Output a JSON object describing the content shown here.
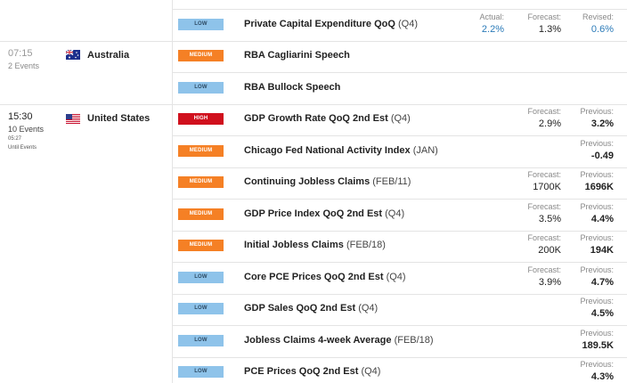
{
  "groups": [
    {
      "events": [
        {
          "impact": "LOW",
          "impact_color": "#8ec3ea",
          "impact_text_color": "#2d4a63",
          "name": "Private Capital Expenditure QoQ",
          "period": "(Q4)",
          "actual": {
            "label": "Actual:",
            "value": "2.2%"
          },
          "forecast": {
            "label": "Forecast:",
            "value": "1.3%"
          },
          "revised": {
            "label": "Revised:",
            "value": "0.6%"
          }
        }
      ]
    },
    {
      "time": "07:15",
      "count": "2 Events",
      "country": "Australia",
      "events": [
        {
          "impact": "MEDIUM",
          "impact_color": "#f58025",
          "impact_text_color": "#ffffff",
          "name": "RBA Cagliarini Speech"
        },
        {
          "impact": "LOW",
          "impact_color": "#8ec3ea",
          "impact_text_color": "#2d4a63",
          "name": "RBA Bullock Speech"
        }
      ]
    },
    {
      "time": "15:30",
      "count": "10 Events",
      "countdown": "05:27",
      "countdown_label": "Until Events",
      "country": "United States",
      "events": [
        {
          "impact": "HIGH",
          "impact_color": "#d0101d",
          "impact_text_color": "#ffffff",
          "name": "GDP Growth Rate QoQ 2nd Est",
          "period": "(Q4)",
          "forecast": {
            "label": "Forecast:",
            "value": "2.9%"
          },
          "previous": {
            "label": "Previous:",
            "value": "3.2%"
          }
        },
        {
          "impact": "MEDIUM",
          "impact_color": "#f58025",
          "impact_text_color": "#ffffff",
          "name": "Chicago Fed National Activity Index",
          "period": "(JAN)",
          "previous": {
            "label": "Previous:",
            "value": "-0.49"
          }
        },
        {
          "impact": "MEDIUM",
          "impact_color": "#f58025",
          "impact_text_color": "#ffffff",
          "name": "Continuing Jobless Claims",
          "period": "(FEB/11)",
          "forecast": {
            "label": "Forecast:",
            "value": "1700K"
          },
          "previous": {
            "label": "Previous:",
            "value": "1696K"
          }
        },
        {
          "impact": "MEDIUM",
          "impact_color": "#f58025",
          "impact_text_color": "#ffffff",
          "name": "GDP Price Index QoQ 2nd Est",
          "period": "(Q4)",
          "forecast": {
            "label": "Forecast:",
            "value": "3.5%"
          },
          "previous": {
            "label": "Previous:",
            "value": "4.4%"
          }
        },
        {
          "impact": "MEDIUM",
          "impact_color": "#f58025",
          "impact_text_color": "#ffffff",
          "name": "Initial Jobless Claims",
          "period": "(FEB/18)",
          "forecast": {
            "label": "Forecast:",
            "value": "200K"
          },
          "previous": {
            "label": "Previous:",
            "value": "194K"
          }
        },
        {
          "impact": "LOW",
          "impact_color": "#8ec3ea",
          "impact_text_color": "#2d4a63",
          "name": "Core PCE Prices QoQ 2nd Est",
          "period": "(Q4)",
          "forecast": {
            "label": "Forecast:",
            "value": "3.9%"
          },
          "previous": {
            "label": "Previous:",
            "value": "4.7%"
          }
        },
        {
          "impact": "LOW",
          "impact_color": "#8ec3ea",
          "impact_text_color": "#2d4a63",
          "name": "GDP Sales QoQ 2nd Est",
          "period": "(Q4)",
          "previous": {
            "label": "Previous:",
            "value": "4.5%"
          }
        },
        {
          "impact": "LOW",
          "impact_color": "#8ec3ea",
          "impact_text_color": "#2d4a63",
          "name": "Jobless Claims 4-week Average",
          "period": "(FEB/18)",
          "previous": {
            "label": "Previous:",
            "value": "189.5K"
          }
        },
        {
          "impact": "LOW",
          "impact_color": "#8ec3ea",
          "impact_text_color": "#2d4a63",
          "name": "PCE Prices QoQ 2nd Est",
          "period": "(Q4)",
          "previous": {
            "label": "Previous:",
            "value": "4.3%"
          }
        }
      ]
    }
  ]
}
